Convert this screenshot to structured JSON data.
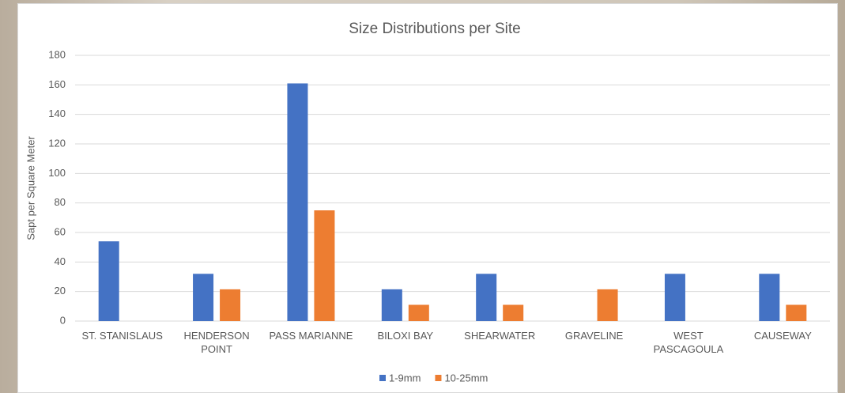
{
  "chart_data": {
    "type": "bar",
    "title": "Size Distributions per Site",
    "y_label": "Sapt per Square Meter",
    "categories": [
      "ST. STANISLAUS",
      "HENDERSON POINT",
      "PASS MARIANNE",
      "BILOXI BAY",
      "SHEARWATER",
      "GRAVELINE",
      "WEST PASCAGOULA",
      "CAUSEWAY"
    ],
    "series": [
      {
        "name": "1-9mm",
        "color": "#4472c4",
        "values": [
          54,
          32,
          161,
          21.5,
          32,
          0,
          32,
          32
        ]
      },
      {
        "name": "10-25mm",
        "color": "#ed7d31",
        "values": [
          0,
          21.5,
          75,
          11,
          11,
          21.5,
          0,
          11
        ]
      }
    ],
    "ylim": [
      0,
      180
    ],
    "yticks": [
      0,
      20,
      40,
      60,
      80,
      100,
      120,
      140,
      160,
      180
    ],
    "grid": true,
    "legend": "bottom"
  }
}
